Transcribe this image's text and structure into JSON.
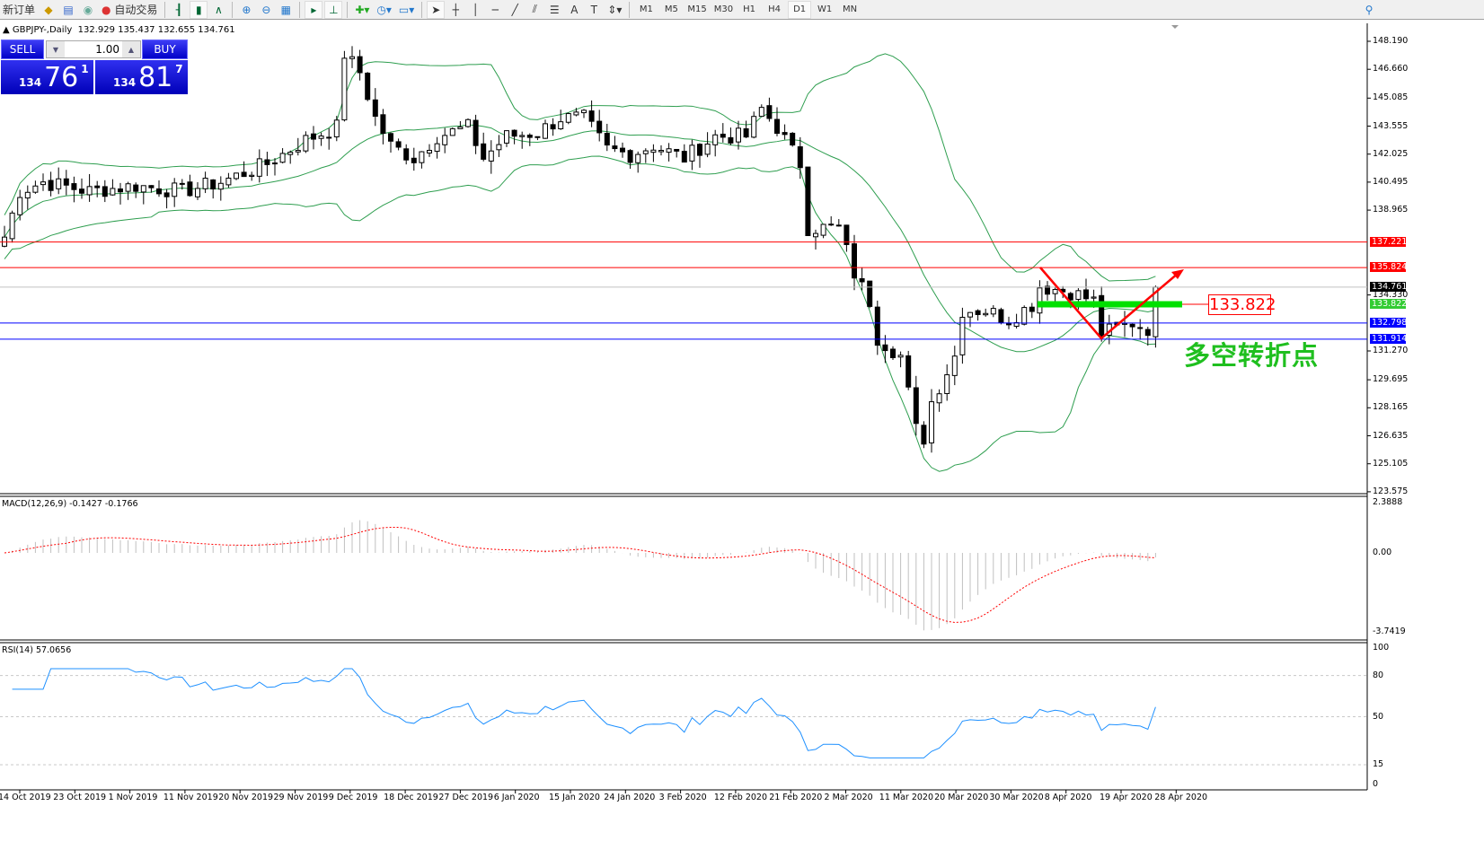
{
  "toolbar": {
    "new_order": "新订单",
    "auto_trading": "自动交易",
    "timeframes": [
      "M1",
      "M5",
      "M15",
      "M30",
      "H1",
      "H4",
      "D1",
      "W1",
      "MN"
    ],
    "active_timeframe": "D1",
    "icons": [
      "new-order-icon",
      "market-watch-icon",
      "data-window-icon",
      "signal-icon",
      "auto-trading-icon",
      "bar-chart-icon",
      "candlestick-icon",
      "line-chart-icon",
      "zoom-in-icon",
      "zoom-out-icon",
      "tile-windows-icon",
      "auto-scroll-icon",
      "chart-shift-icon",
      "indicators-icon",
      "periods-icon",
      "templates-icon",
      "cursor-icon",
      "crosshair-icon",
      "vertical-line-icon",
      "horizontal-line-icon",
      "trendline-icon",
      "equidistant-channel-icon",
      "fibonacci-icon",
      "text-icon",
      "text-label-icon",
      "arrows-icon",
      "search-icon"
    ]
  },
  "chart": {
    "title": "GBPJPY-,Daily",
    "ohlc": "132.929 135.437 132.655 134.761",
    "trade_panel": {
      "sell_label": "SELL",
      "buy_label": "BUY",
      "lot": "1.00",
      "bid_prefix": "134",
      "bid_big": "76",
      "bid_pip": "1",
      "ask_prefix": "134",
      "ask_big": "81",
      "ask_pip": "7"
    },
    "price_axis": [
      "148.190",
      "146.660",
      "145.085",
      "143.555",
      "142.025",
      "140.495",
      "138.965",
      "134.330",
      "131.270",
      "129.695",
      "128.165",
      "126.635",
      "125.105",
      "123.575"
    ],
    "levels": [
      {
        "price": "137.221",
        "color": "#ff0000",
        "text": "#ffffff"
      },
      {
        "price": "135.824",
        "color": "#ff0000",
        "text": "#ffffff"
      },
      {
        "price": "134.761",
        "color": "#000000",
        "text": "#ffffff",
        "line": "#c0c0c0"
      },
      {
        "price": "133.822",
        "color": "#33cc33",
        "text": "#ffffff"
      },
      {
        "price": "132.798",
        "color": "#0000ff",
        "text": "#ffffff"
      },
      {
        "price": "131.914",
        "color": "#0000ff",
        "text": "#ffffff"
      }
    ],
    "annotation_price": "133.822",
    "annotation_text": "多空转折点",
    "approx_close_path": [
      [
        0,
        137.5
      ],
      [
        2,
        140
      ],
      [
        5,
        140.5
      ],
      [
        11,
        140
      ],
      [
        17,
        140.3
      ],
      [
        23,
        140
      ],
      [
        28,
        140.5
      ],
      [
        34,
        141.5
      ],
      [
        39,
        142.8
      ],
      [
        43,
        143.5
      ],
      [
        44,
        147.5
      ],
      [
        46,
        146.5
      ],
      [
        48,
        144
      ],
      [
        50,
        142.5
      ],
      [
        53,
        141.8
      ],
      [
        56,
        143
      ],
      [
        60,
        143.5
      ],
      [
        62,
        141.8
      ],
      [
        65,
        143
      ],
      [
        69,
        143.2
      ],
      [
        72,
        144
      ],
      [
        75,
        144
      ],
      [
        78,
        142.3
      ],
      [
        81,
        142
      ],
      [
        84,
        142.5
      ],
      [
        88,
        141.8
      ],
      [
        92,
        143
      ],
      [
        96,
        143
      ],
      [
        98,
        144.5
      ],
      [
        100,
        143.5
      ],
      [
        103,
        141.5
      ],
      [
        104,
        138
      ],
      [
        108,
        138
      ],
      [
        110,
        135.5
      ],
      [
        112,
        134
      ],
      [
        113,
        132
      ],
      [
        116,
        131
      ],
      [
        118,
        127
      ],
      [
        119,
        126.5
      ],
      [
        120,
        128.5
      ],
      [
        123,
        131
      ],
      [
        124,
        133.5
      ],
      [
        127,
        133.5
      ],
      [
        130,
        133
      ],
      [
        133,
        133.8
      ],
      [
        134,
        134.8
      ],
      [
        138,
        134.5
      ],
      [
        141,
        134
      ],
      [
        142,
        132.2
      ],
      [
        146,
        132.8
      ],
      [
        148,
        132.5
      ],
      [
        149,
        134.761
      ]
    ],
    "colors": {
      "bands": "#2e9e4f",
      "macd_hist": "#c0c0c0",
      "macd_signal": "#ff0000",
      "rsi": "#1e90ff",
      "arrows": "#ff0000",
      "green_line": "#00e000"
    }
  },
  "macd": {
    "label": "MACD(12,26,9) -0.1427 -0.1766",
    "axis": [
      "2.3888",
      "0.00",
      "-3.7419"
    ]
  },
  "rsi": {
    "label": "RSI(14) 57.0656",
    "axis": [
      "100",
      "80",
      "50",
      "15",
      "0"
    ]
  },
  "dates": [
    "14 Oct 2019",
    "23 Oct 2019",
    "1 Nov 2019",
    "11 Nov 2019",
    "20 Nov 2019",
    "29 Nov 2019",
    "9 Dec 2019",
    "18 Dec 2019",
    "27 Dec 2019",
    "6 Jan 2020",
    "15 Jan 2020",
    "24 Jan 2020",
    "3 Feb 2020",
    "12 Feb 2020",
    "21 Feb 2020",
    "2 Mar 2020",
    "11 Mar 2020",
    "20 Mar 2020",
    "30 Mar 2020",
    "8 Apr 2020",
    "19 Apr 2020",
    "28 Apr 2020"
  ]
}
